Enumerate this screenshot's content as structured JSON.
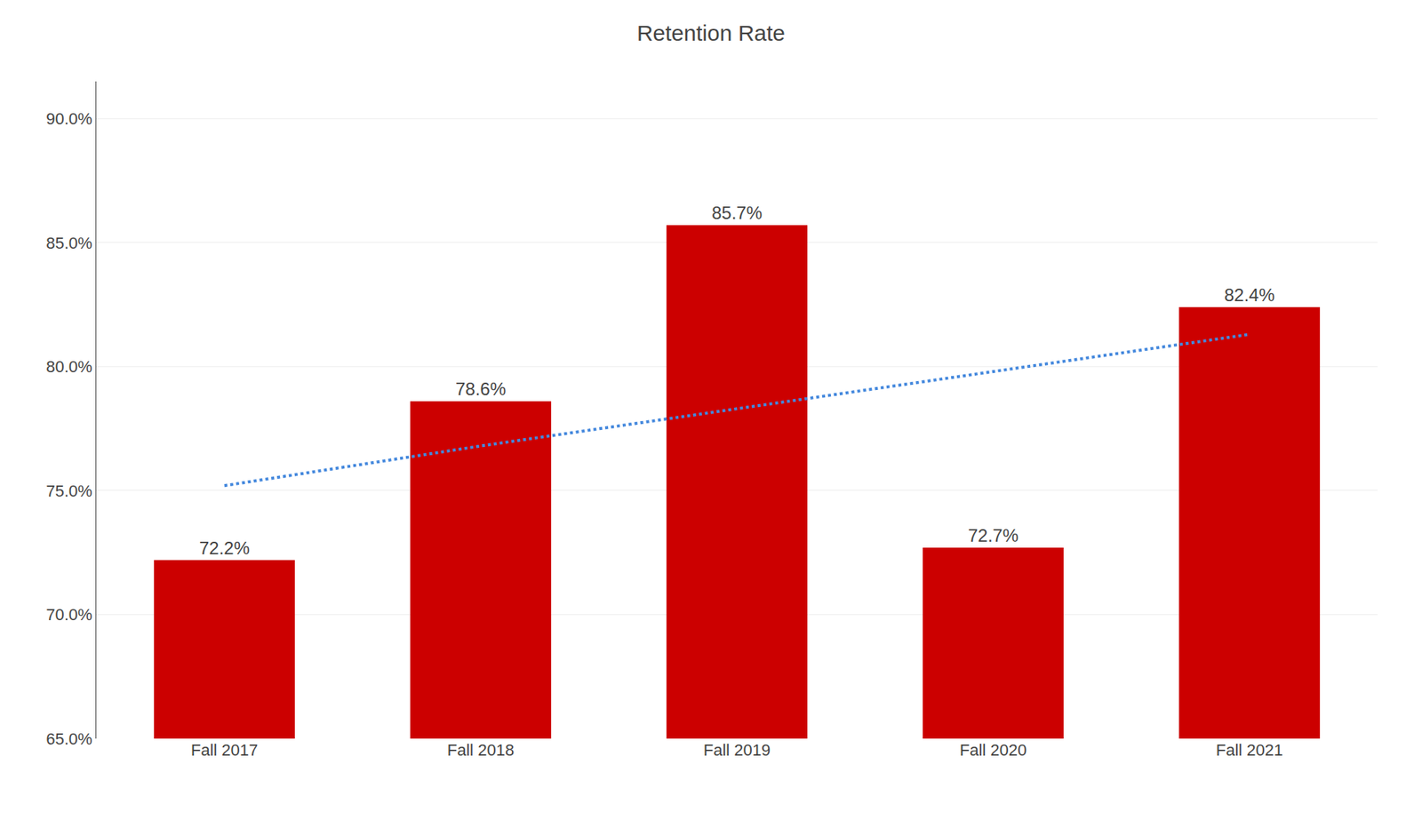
{
  "chart_data": {
    "type": "bar",
    "title": "Retention Rate",
    "categories": [
      "Fall 2017",
      "Fall 2018",
      "Fall 2019",
      "Fall 2020",
      "Fall 2021"
    ],
    "series": [
      {
        "type": "bar",
        "color": "#cc0000",
        "values": [
          72.2,
          78.6,
          85.7,
          72.7,
          82.4
        ],
        "value_labels": [
          "72.2%",
          "78.6%",
          "85.7%",
          "72.7%",
          "82.4%"
        ]
      },
      {
        "type": "line",
        "color": "#4488dd",
        "line_style": "dotted",
        "values": [
          75.2,
          76.8,
          78.3,
          79.8,
          81.3
        ]
      }
    ],
    "ylim": [
      65.0,
      91.5
    ],
    "yticks": [
      {
        "value": 65.0,
        "label": "65.0%"
      },
      {
        "value": 70.0,
        "label": "70.0%"
      },
      {
        "value": 75.0,
        "label": "75.0%"
      },
      {
        "value": 80.0,
        "label": "80.0%"
      },
      {
        "value": 85.0,
        "label": "85.0%"
      },
      {
        "value": 90.0,
        "label": "90.0%"
      }
    ],
    "grid": true,
    "data_labels": true
  }
}
